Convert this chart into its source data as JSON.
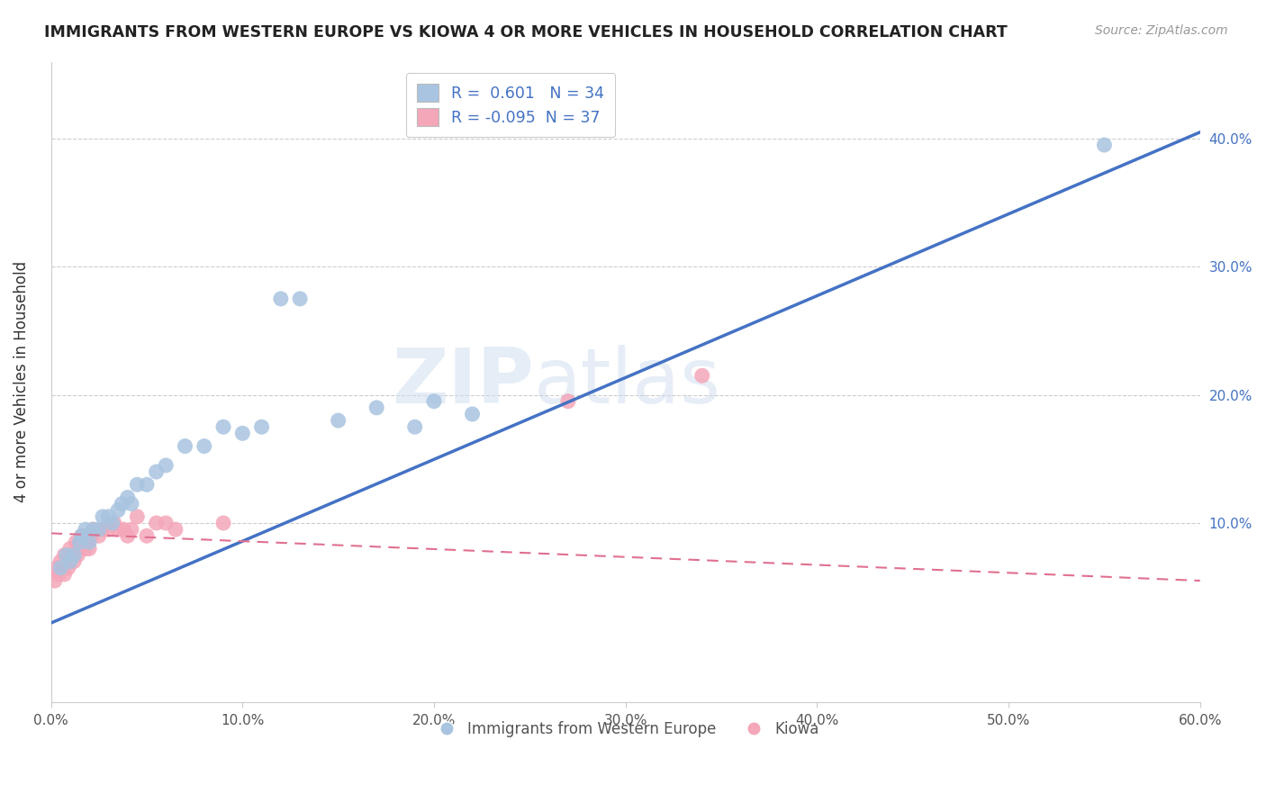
{
  "title": "IMMIGRANTS FROM WESTERN EUROPE VS KIOWA 4 OR MORE VEHICLES IN HOUSEHOLD CORRELATION CHART",
  "source": "Source: ZipAtlas.com",
  "ylabel": "4 or more Vehicles in Household",
  "xlim": [
    0.0,
    0.6
  ],
  "ylim": [
    -0.04,
    0.46
  ],
  "xtick_labels": [
    "0.0%",
    "10.0%",
    "20.0%",
    "30.0%",
    "40.0%",
    "50.0%",
    "60.0%"
  ],
  "xtick_values": [
    0.0,
    0.1,
    0.2,
    0.3,
    0.4,
    0.5,
    0.6
  ],
  "ytick_labels": [
    "10.0%",
    "20.0%",
    "30.0%",
    "40.0%"
  ],
  "ytick_values": [
    0.1,
    0.2,
    0.3,
    0.4
  ],
  "legend_labels": [
    "Immigrants from Western Europe",
    "Kiowa"
  ],
  "R_blue": 0.601,
  "N_blue": 34,
  "R_pink": -0.095,
  "N_pink": 37,
  "blue_color": "#a8c4e0",
  "pink_color": "#f4a7b9",
  "blue_line_color": "#4472c4",
  "pink_line_color": "#e07090",
  "watermark_zip": "ZIP",
  "watermark_atlas": "atlas",
  "blue_scatter_x": [
    0.005,
    0.008,
    0.01,
    0.012,
    0.015,
    0.016,
    0.018,
    0.02,
    0.022,
    0.025,
    0.027,
    0.03,
    0.032,
    0.035,
    0.037,
    0.04,
    0.042,
    0.045,
    0.05,
    0.055,
    0.06,
    0.07,
    0.08,
    0.09,
    0.1,
    0.11,
    0.12,
    0.13,
    0.15,
    0.17,
    0.19,
    0.22,
    0.2,
    0.55
  ],
  "blue_scatter_y": [
    0.065,
    0.075,
    0.07,
    0.075,
    0.085,
    0.09,
    0.095,
    0.085,
    0.095,
    0.095,
    0.105,
    0.105,
    0.1,
    0.11,
    0.115,
    0.12,
    0.115,
    0.13,
    0.13,
    0.14,
    0.145,
    0.16,
    0.16,
    0.175,
    0.17,
    0.175,
    0.275,
    0.275,
    0.18,
    0.19,
    0.175,
    0.185,
    0.195,
    0.395
  ],
  "pink_scatter_x": [
    0.002,
    0.003,
    0.004,
    0.005,
    0.006,
    0.007,
    0.007,
    0.008,
    0.009,
    0.01,
    0.01,
    0.012,
    0.013,
    0.014,
    0.015,
    0.016,
    0.018,
    0.019,
    0.02,
    0.021,
    0.022,
    0.025,
    0.027,
    0.03,
    0.033,
    0.035,
    0.038,
    0.04,
    0.042,
    0.045,
    0.05,
    0.055,
    0.06,
    0.065,
    0.09,
    0.27,
    0.34
  ],
  "pink_scatter_y": [
    0.055,
    0.065,
    0.06,
    0.07,
    0.065,
    0.06,
    0.075,
    0.07,
    0.065,
    0.075,
    0.08,
    0.07,
    0.085,
    0.075,
    0.085,
    0.09,
    0.08,
    0.085,
    0.08,
    0.09,
    0.095,
    0.09,
    0.095,
    0.095,
    0.1,
    0.095,
    0.095,
    0.09,
    0.095,
    0.105,
    0.09,
    0.1,
    0.1,
    0.095,
    0.1,
    0.195,
    0.215
  ],
  "blue_trend_x0": 0.0,
  "blue_trend_y0": 0.022,
  "blue_trend_x1": 0.6,
  "blue_trend_y1": 0.405,
  "pink_trend_x0": 0.0,
  "pink_trend_y0": 0.092,
  "pink_trend_x1": 0.6,
  "pink_trend_y1": 0.055
}
